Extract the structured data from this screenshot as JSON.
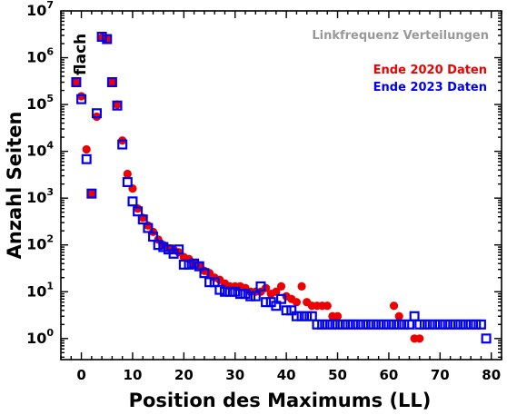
{
  "chart_data": {
    "type": "scatter",
    "title": "Linkfrequenz Verteilungen",
    "xlabel": "Position des Maximums (LL)",
    "ylabel": "Anzahl Seiten",
    "annotation": "flach",
    "xlim": [
      -4,
      82
    ],
    "ylim_exp": [
      -0.45,
      7
    ],
    "yscale": "log",
    "x_ticks": [
      0,
      10,
      20,
      30,
      40,
      50,
      60,
      70,
      80
    ],
    "y_ticks_exp": [
      0,
      1,
      2,
      3,
      4,
      5,
      6,
      7
    ],
    "legend_position": "top-right",
    "series": [
      {
        "name": "Ende 2020 Daten",
        "marker": "filled-circle",
        "color": "#ee0000",
        "points": [
          [
            -1,
            300000
          ],
          [
            0,
            150000
          ],
          [
            1,
            11000
          ],
          [
            2,
            1250
          ],
          [
            3,
            55000
          ],
          [
            4,
            2700000
          ],
          [
            5,
            2500000
          ],
          [
            6,
            300000
          ],
          [
            7,
            100000
          ],
          [
            8,
            17000
          ],
          [
            9,
            3300
          ],
          [
            10,
            1600
          ],
          [
            11,
            600
          ],
          [
            12,
            380
          ],
          [
            13,
            260
          ],
          [
            14,
            190
          ],
          [
            15,
            130
          ],
          [
            16,
            100
          ],
          [
            17,
            85
          ],
          [
            18,
            80
          ],
          [
            19,
            70
          ],
          [
            20,
            55
          ],
          [
            21,
            50
          ],
          [
            22,
            40
          ],
          [
            23,
            35
          ],
          [
            24,
            28
          ],
          [
            25,
            25
          ],
          [
            26,
            20
          ],
          [
            27,
            18
          ],
          [
            28,
            15
          ],
          [
            29,
            13
          ],
          [
            30,
            13
          ],
          [
            31,
            13
          ],
          [
            32,
            12
          ],
          [
            33,
            10
          ],
          [
            34,
            10
          ],
          [
            35,
            10
          ],
          [
            36,
            12
          ],
          [
            37,
            9
          ],
          [
            38,
            10
          ],
          [
            39,
            13
          ],
          [
            40,
            8
          ],
          [
            41,
            7
          ],
          [
            42,
            6
          ],
          [
            43,
            13
          ],
          [
            44,
            6
          ],
          [
            45,
            5
          ],
          [
            46,
            5
          ],
          [
            47,
            5
          ],
          [
            48,
            5
          ],
          [
            49,
            3
          ],
          [
            50,
            3
          ],
          [
            61,
            5
          ],
          [
            62,
            3
          ],
          [
            65,
            1
          ],
          [
            66,
            1
          ]
        ]
      },
      {
        "name": "Ende 2023 Daten",
        "marker": "open-square",
        "color": "#0000ee",
        "points": [
          [
            -1,
            300000
          ],
          [
            0,
            130000
          ],
          [
            1,
            6800
          ],
          [
            2,
            1250
          ],
          [
            3,
            65000
          ],
          [
            4,
            2800000
          ],
          [
            5,
            2500000
          ],
          [
            6,
            300000
          ],
          [
            7,
            95000
          ],
          [
            8,
            14000
          ],
          [
            9,
            2200
          ],
          [
            10,
            850
          ],
          [
            11,
            520
          ],
          [
            12,
            350
          ],
          [
            13,
            230
          ],
          [
            14,
            150
          ],
          [
            15,
            100
          ],
          [
            16,
            90
          ],
          [
            17,
            80
          ],
          [
            18,
            65
          ],
          [
            19,
            80
          ],
          [
            20,
            38
          ],
          [
            21,
            38
          ],
          [
            22,
            40
          ],
          [
            23,
            35
          ],
          [
            24,
            25
          ],
          [
            25,
            16
          ],
          [
            26,
            16
          ],
          [
            27,
            11
          ],
          [
            28,
            10
          ],
          [
            29,
            10
          ],
          [
            30,
            10
          ],
          [
            31,
            9
          ],
          [
            32,
            9
          ],
          [
            33,
            8
          ],
          [
            34,
            8
          ],
          [
            35,
            13
          ],
          [
            36,
            6
          ],
          [
            37,
            6
          ],
          [
            38,
            5
          ],
          [
            39,
            7
          ],
          [
            40,
            4
          ],
          [
            41,
            4
          ],
          [
            42,
            3
          ],
          [
            43,
            3
          ],
          [
            44,
            3
          ],
          [
            45,
            3
          ],
          [
            46,
            2
          ],
          [
            47,
            2
          ],
          [
            48,
            2
          ],
          [
            49,
            2
          ],
          [
            50,
            2
          ],
          [
            51,
            2
          ],
          [
            52,
            2
          ],
          [
            53,
            2
          ],
          [
            54,
            2
          ],
          [
            55,
            2
          ],
          [
            56,
            2
          ],
          [
            57,
            2
          ],
          [
            58,
            2
          ],
          [
            59,
            2
          ],
          [
            60,
            2
          ],
          [
            61,
            2
          ],
          [
            62,
            2
          ],
          [
            63,
            2
          ],
          [
            64,
            2
          ],
          [
            65,
            3
          ],
          [
            66,
            2
          ],
          [
            67,
            2
          ],
          [
            68,
            2
          ],
          [
            69,
            2
          ],
          [
            70,
            2
          ],
          [
            71,
            2
          ],
          [
            72,
            2
          ],
          [
            73,
            2
          ],
          [
            74,
            2
          ],
          [
            75,
            2
          ],
          [
            76,
            2
          ],
          [
            77,
            2
          ],
          [
            78,
            2
          ],
          [
            79,
            1
          ]
        ]
      }
    ]
  }
}
